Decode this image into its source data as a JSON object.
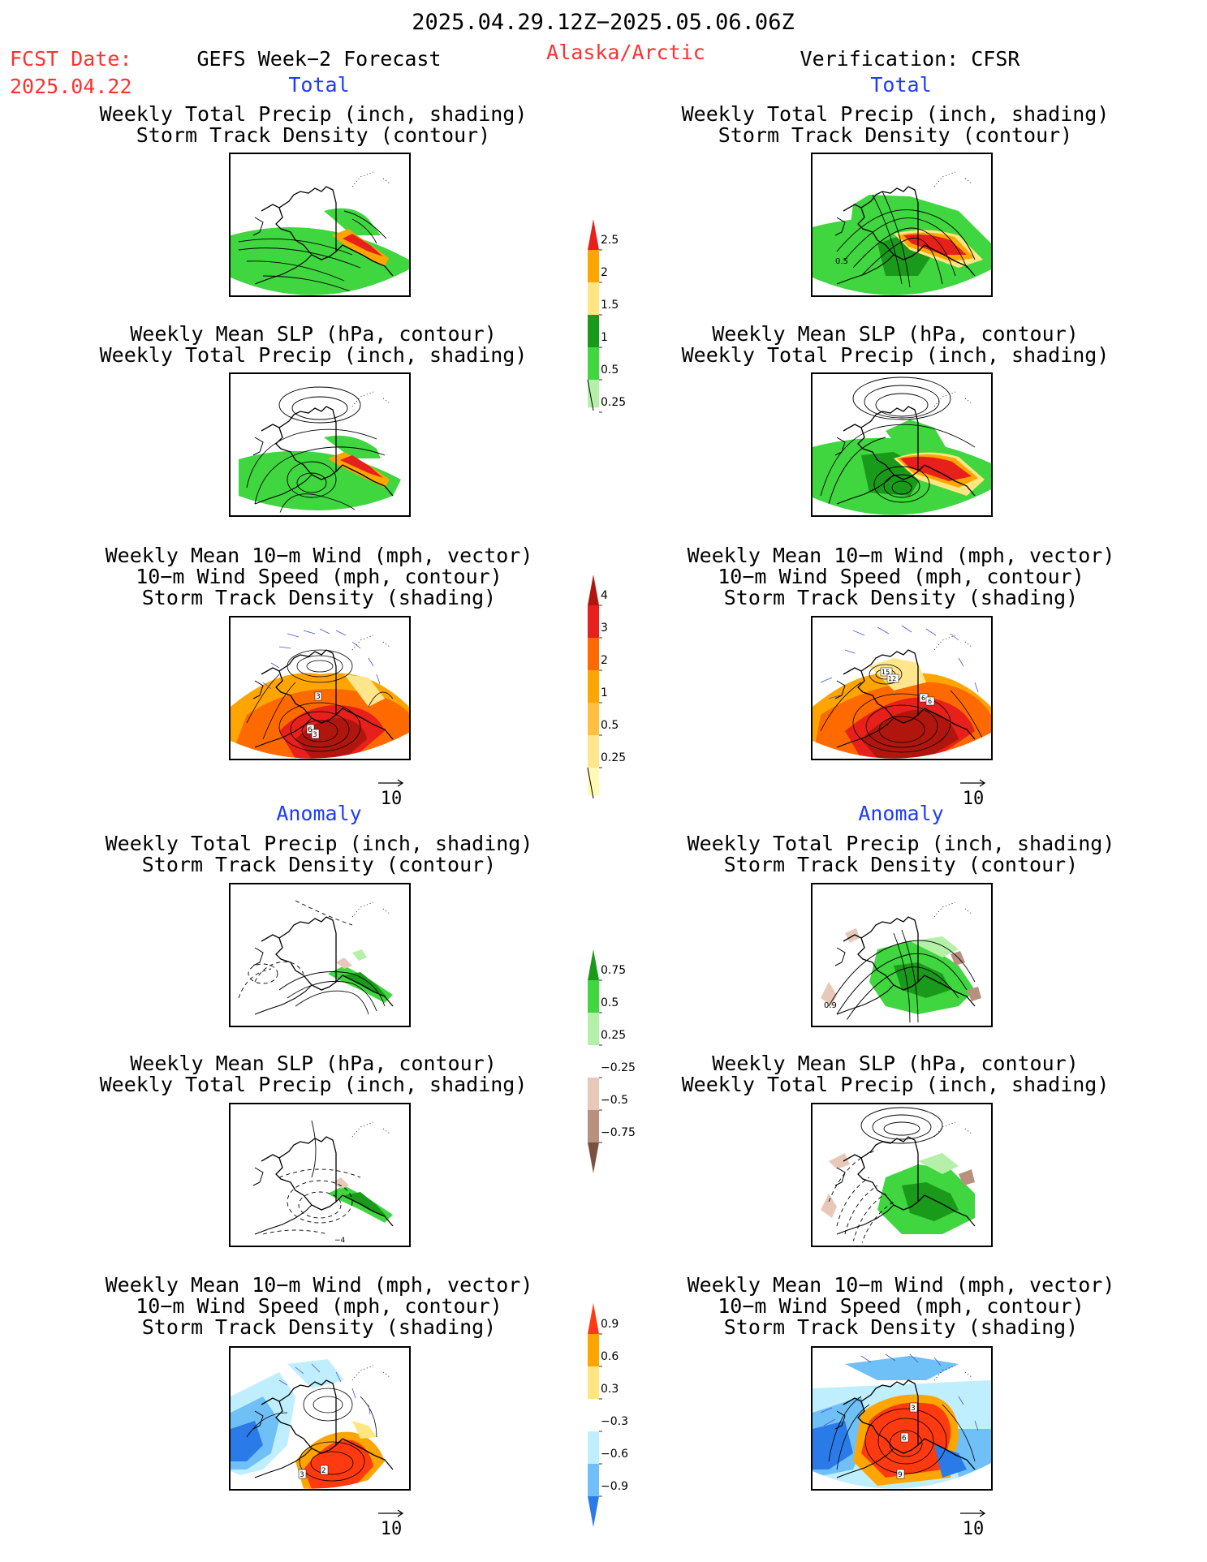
{
  "header": {
    "date_range": "2025.04.29.12Z−2025.05.06.06Z",
    "fcst_label": "FCST Date:",
    "fcst_date": "2025.04.22",
    "forecast_title": "GEFS Week−2 Forecast",
    "region": "Alaska/Arctic",
    "verification": "Verification: CFSR"
  },
  "sections": {
    "total": "Total",
    "anomaly": "Anomaly"
  },
  "titles": {
    "precip_track": [
      "Weekly Total Precip (inch, shading)",
      "Storm Track Density (contour)"
    ],
    "slp_precip": [
      "Weekly Mean SLP (hPa, contour)",
      "Weekly Total Precip (inch, shading)"
    ],
    "wind_track": [
      "Weekly Mean 10−m Wind (mph, vector)",
      "10−m Wind Speed (mph, contour)",
      "Storm Track Density (shading)"
    ]
  },
  "reference_vector": "10",
  "colorbars": {
    "precip_total": {
      "ticks": [
        "2.5",
        "2",
        "1.5",
        "1",
        "0.5",
        "0.25"
      ],
      "colors": [
        "#e8201c",
        "#ffa500",
        "#ffe680",
        "#1a9a1a",
        "#3fd63f",
        "#b4f0a8"
      ]
    },
    "track_total": {
      "ticks": [
        "4",
        "3",
        "2",
        "1",
        "0.5",
        "0.25"
      ],
      "colors": [
        "#b0160e",
        "#e8201c",
        "#ff6a00",
        "#ffa500",
        "#ffc040",
        "#ffe68c",
        "#fffab4"
      ]
    },
    "precip_anom": {
      "ticks": [
        "0.75",
        "0.5",
        "0.25",
        "−0.25",
        "−0.5",
        "−0.75"
      ],
      "colors": [
        "#1a9a1a",
        "#3fd63f",
        "#b4f0a8",
        "#ffffff",
        "#e8c8b8",
        "#b8907e",
        "#7a5040"
      ]
    },
    "track_anom": {
      "ticks": [
        "0.9",
        "0.6",
        "0.3",
        "−0.3",
        "−0.6",
        "−0.9"
      ],
      "colors": [
        "#ff3a10",
        "#ffa500",
        "#ffe680",
        "#ffffff",
        "#bfefff",
        "#70c0f8",
        "#2a7ae8"
      ]
    }
  },
  "contour_labels": {
    "fc_total_precip": "",
    "obs_total_precip": "0.5",
    "fc_total_wind": [
      "3",
      "6",
      "3"
    ],
    "obs_total_wind": [
      "15",
      "12",
      "6",
      "6"
    ],
    "obs_anom_precip": "0.9",
    "fc_anom_slp": "−4",
    "fc_anom_wind": [
      "3",
      "2"
    ],
    "obs_anom_wind": [
      "3",
      "6",
      "9"
    ]
  }
}
